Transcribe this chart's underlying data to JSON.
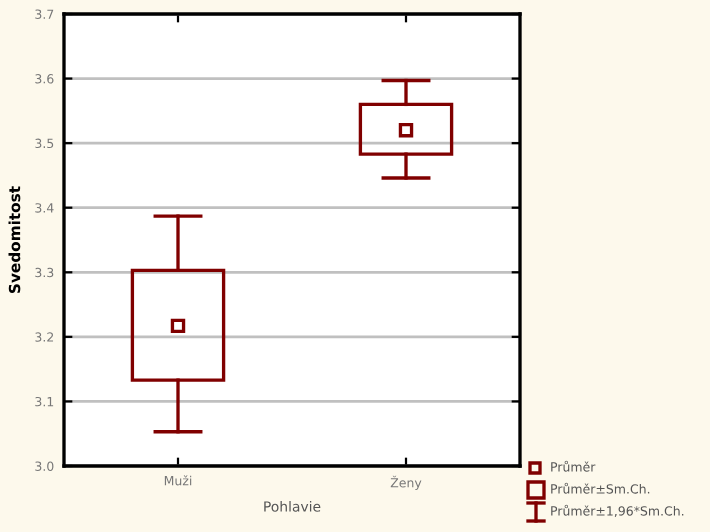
{
  "chart_data": {
    "type": "box",
    "ylabel": "Svedomitost",
    "xlabel": "Pohlavie",
    "categories": [
      "Muži",
      "Ženy"
    ],
    "color": "#800000",
    "boxes": [
      {
        "low": 3.053,
        "q1": 3.133,
        "median": 3.217,
        "q3": 3.303,
        "high": 3.387
      },
      {
        "low": 3.446,
        "q1": 3.483,
        "median": 3.52,
        "q3": 3.56,
        "high": 3.597
      }
    ],
    "ylim": [
      3.0,
      3.7
    ],
    "yticks": [
      {
        "value": 3.0,
        "label": "3.0"
      },
      {
        "value": 3.1,
        "label": "3.1"
      },
      {
        "value": 3.2,
        "label": "3.2"
      },
      {
        "value": 3.3,
        "label": "3.3"
      },
      {
        "value": 3.4,
        "label": "3.4"
      },
      {
        "value": 3.5,
        "label": "3.5"
      },
      {
        "value": 3.6,
        "label": "3.6"
      },
      {
        "value": 3.7,
        "label": "3.7"
      }
    ],
    "grid": "y",
    "annotations": [
      "Průměr",
      "Průměr±Sm.Ch.",
      "Průměr±1,96*Sm.Ch."
    ]
  }
}
